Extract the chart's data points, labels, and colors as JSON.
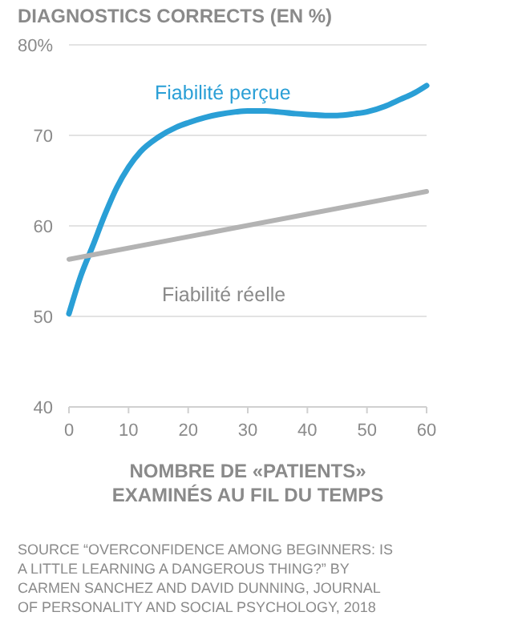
{
  "chart_data": {
    "type": "line",
    "title": "DIAGNOSTICS CORRECTS (EN %)",
    "xlabel": "NOMBRE DE «PATIENTS» EXAMINÉS AU FIL DU TEMPS",
    "x": [
      0,
      2,
      4,
      6,
      8,
      10,
      12,
      15,
      18,
      20,
      23,
      25,
      28,
      30,
      33,
      35,
      38,
      40,
      43,
      45,
      48,
      50,
      53,
      55,
      58,
      60
    ],
    "series": [
      {
        "name": "Fiabilité perçue",
        "color": "#2a9fd6",
        "values": [
          50.3,
          54.5,
          57.8,
          61.2,
          64.2,
          66.5,
          68.2,
          69.8,
          70.9,
          71.4,
          72.0,
          72.3,
          72.6,
          72.7,
          72.7,
          72.6,
          72.4,
          72.3,
          72.2,
          72.2,
          72.4,
          72.6,
          73.2,
          73.8,
          74.7,
          75.5
        ]
      },
      {
        "name": "Fiabilité réelle",
        "color": "#b3b3b3",
        "x": [
          0,
          60
        ],
        "values": [
          56.3,
          63.8
        ]
      }
    ],
    "xlim": [
      0,
      60
    ],
    "xticks": [
      0,
      10,
      20,
      30,
      40,
      50,
      60
    ],
    "ylim": [
      40,
      80
    ],
    "yticks": [
      40,
      50,
      60,
      70,
      {
        "value": 80,
        "label": "80%"
      }
    ],
    "grid": "y",
    "marker": "none",
    "line_style": "solid",
    "annotations": [
      "SOURCE “OVERCONFIDENCE AMONG BEGINNERS: IS A LITTLE LEARNING A DANGEROUS THING?” BY CARMEN SANCHEZ AND DAVID DUNNING, JOURNAL OF PERSONALITY AND SOCIAL PSYCHOLOGY, 2018"
    ]
  }
}
